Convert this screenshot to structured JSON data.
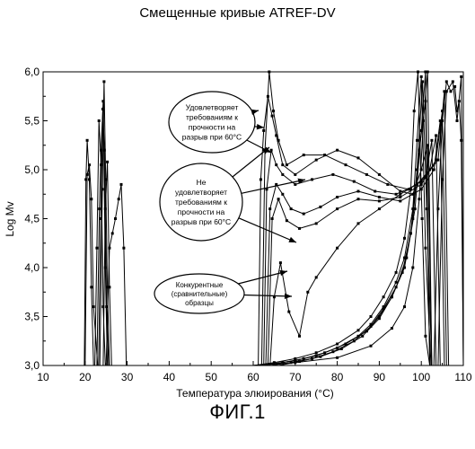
{
  "caption": "ФИГ.1",
  "chart_data": {
    "type": "line",
    "title": "Смещенные кривые ATREF-DV",
    "xlabel": "Температура элюирования (°C)",
    "ylabel": "Log Mv",
    "xlim": [
      10,
      110
    ],
    "ylim": [
      3.0,
      6.0
    ],
    "x_ticks": [
      "10",
      "20",
      "30",
      "40",
      "50",
      "60",
      "70",
      "80",
      "90",
      "100",
      "110"
    ],
    "y_ticks": [
      "3,0",
      "3,5",
      "4,0",
      "4,5",
      "5,0",
      "5,5",
      "6,0"
    ],
    "grid": false,
    "line_color": "#000000",
    "annotations": [
      {
        "text": "Удовлетворяет требованиям к прочности на разрыв при 60°C",
        "lines": [
          "Удовлетворяет",
          "требованиям к",
          "прочности на",
          "разрыв при 60°C"
        ]
      },
      {
        "text": "Не удовлетворяет требованиям к прочности на разрыв при 60°C",
        "lines": [
          "Не",
          "удовлетворяет",
          "требованиям к",
          "прочности на",
          "разрыв при 60°C"
        ]
      },
      {
        "text": "Конкурентные (сравнительные) образцы",
        "lines": [
          "Конкурентные",
          "(сравнительные)",
          "образцы"
        ]
      }
    ],
    "series": [
      {
        "x": [
          10,
          19.8,
          20.2,
          20.5,
          21,
          21.5,
          22,
          29,
          110
        ],
        "y": [
          3.0,
          3.0,
          4.9,
          5.3,
          4.9,
          3.8,
          3.0,
          3.0,
          3.0
        ]
      },
      {
        "x": [
          10,
          20,
          20.5,
          21,
          21.5,
          22,
          23,
          110
        ],
        "y": [
          3.0,
          3.0,
          4.95,
          5.05,
          4.7,
          3.6,
          3.0,
          3.0
        ]
      },
      {
        "x": [
          10,
          22.3,
          22.8,
          23.3,
          23.8,
          24.3,
          24.8,
          110
        ],
        "y": [
          3.0,
          3.0,
          4.2,
          5.5,
          5.05,
          3.6,
          3.0,
          3.0
        ]
      },
      {
        "x": [
          10,
          22.8,
          23.4,
          23.8,
          24.3,
          24.8,
          25.3,
          110
        ],
        "y": [
          3.0,
          3.0,
          4.6,
          5.2,
          5.7,
          4.0,
          3.0,
          3.0
        ]
      },
      {
        "x": [
          10,
          23.2,
          23.7,
          24.2,
          24.6,
          25.1,
          25.6,
          110
        ],
        "y": [
          3.0,
          3.0,
          4.5,
          5.62,
          5.2,
          3.6,
          3.0,
          3.0
        ]
      },
      {
        "x": [
          10,
          23.5,
          24.1,
          24.5,
          24.9,
          25.3,
          25.8,
          110
        ],
        "y": [
          3.0,
          3.0,
          4.8,
          5.9,
          4.9,
          3.8,
          3.0,
          3.0
        ]
      },
      {
        "x": [
          10,
          24.3,
          24.8,
          25.3,
          25.8,
          26.3,
          110
        ],
        "y": [
          3.0,
          3.0,
          4.6,
          5.08,
          3.8,
          3.0,
          3.0
        ]
      },
      {
        "x": [
          10,
          25,
          25.8,
          26.5,
          27.2,
          28,
          28.6,
          29.2,
          29.8,
          110
        ],
        "y": [
          3.0,
          3.0,
          4.2,
          4.35,
          4.5,
          4.7,
          4.85,
          4.2,
          3.0,
          3.0
        ]
      },
      {
        "x": [
          10,
          61.2,
          61.8,
          62.5,
          63.5,
          64.5,
          65.5,
          67,
          70,
          75,
          80,
          85,
          90,
          95,
          98,
          100,
          101.5,
          102.5,
          110
        ],
        "y": [
          3.0,
          3.0,
          4.9,
          5.4,
          5.75,
          5.55,
          5.35,
          5.05,
          4.95,
          5.1,
          5.2,
          5.12,
          4.95,
          4.78,
          4.75,
          5.0,
          5.25,
          3.0,
          3.0
        ]
      },
      {
        "x": [
          10,
          62,
          62.8,
          63.8,
          64.8,
          66,
          68,
          72,
          77,
          82,
          87,
          92,
          97,
          101,
          102.5,
          103.5,
          110
        ],
        "y": [
          3.0,
          3.0,
          5.2,
          6.0,
          5.6,
          5.3,
          5.05,
          5.15,
          5.15,
          5.05,
          4.95,
          4.85,
          4.8,
          4.92,
          5.3,
          3.0,
          3.0
        ]
      },
      {
        "x": [
          10,
          62.5,
          63.2,
          64.3,
          65.5,
          67,
          70,
          74,
          79,
          84,
          89,
          94,
          99,
          102,
          103.5,
          104.5,
          110
        ],
        "y": [
          3.0,
          3.0,
          4.8,
          5.2,
          5.05,
          4.95,
          4.85,
          4.9,
          4.95,
          4.88,
          4.78,
          4.75,
          4.85,
          5.0,
          5.35,
          3.0,
          3.0
        ]
      },
      {
        "x": [
          10,
          63,
          64,
          65.5,
          67,
          69,
          72,
          76,
          80,
          85,
          90,
          95,
          100,
          103,
          104.5,
          105.5,
          110
        ],
        "y": [
          3.0,
          3.0,
          4.6,
          4.85,
          4.75,
          4.6,
          4.55,
          4.62,
          4.72,
          4.78,
          4.72,
          4.68,
          4.8,
          5.0,
          5.5,
          3.0,
          3.0
        ]
      },
      {
        "x": [
          10,
          63.5,
          64.5,
          66,
          68,
          71,
          75,
          80,
          85,
          90,
          95,
          100,
          103.5,
          105,
          106,
          110
        ],
        "y": [
          3.0,
          3.0,
          4.5,
          4.7,
          4.48,
          4.4,
          4.45,
          4.6,
          4.7,
          4.68,
          4.72,
          4.85,
          5.1,
          5.6,
          3.0,
          3.0
        ]
      },
      {
        "x": [
          10,
          64,
          65,
          66.5,
          68.5,
          71,
          73,
          75,
          80,
          85,
          90,
          95,
          100,
          104,
          105.5,
          106.5,
          110
        ],
        "y": [
          3.0,
          3.0,
          3.7,
          4.05,
          3.55,
          3.3,
          3.75,
          3.9,
          4.2,
          4.45,
          4.6,
          4.75,
          4.88,
          5.1,
          5.8,
          3.0,
          3.0
        ]
      },
      {
        "x": [
          10,
          60,
          65,
          70,
          75,
          80,
          85,
          88,
          91,
          94,
          96,
          97.5,
          98.3,
          99.2,
          100.2,
          101,
          102,
          110
        ],
        "y": [
          3.0,
          3.0,
          3.03,
          3.07,
          3.13,
          3.22,
          3.36,
          3.5,
          3.7,
          3.95,
          4.3,
          4.8,
          5.6,
          6.0,
          4.5,
          3.3,
          3.0,
          3.0
        ]
      },
      {
        "x": [
          10,
          60,
          65,
          70,
          75,
          80,
          85,
          88,
          91,
          94,
          96,
          98,
          99,
          100,
          101,
          102.3,
          110
        ],
        "y": [
          3.0,
          3.0,
          3.02,
          3.05,
          3.1,
          3.18,
          3.3,
          3.42,
          3.6,
          3.85,
          4.1,
          4.6,
          5.3,
          5.95,
          4.2,
          3.0,
          3.0
        ]
      },
      {
        "x": [
          10,
          62,
          67,
          72,
          77,
          82,
          87,
          90,
          93,
          95.5,
          97.5,
          99,
          100.3,
          101.3,
          102.5,
          110
        ],
        "y": [
          3.0,
          3.0,
          3.03,
          3.07,
          3.13,
          3.22,
          3.35,
          3.5,
          3.7,
          3.95,
          4.35,
          5.0,
          5.9,
          4.6,
          3.0,
          3.0
        ]
      },
      {
        "x": [
          10,
          64,
          69,
          74,
          79,
          84,
          88,
          91,
          94,
          96.5,
          98.5,
          100,
          101,
          102,
          110
        ],
        "y": [
          3.0,
          3.0,
          3.03,
          3.07,
          3.14,
          3.25,
          3.4,
          3.58,
          3.8,
          4.1,
          4.6,
          5.4,
          6.0,
          3.0,
          3.0
        ]
      },
      {
        "x": [
          10,
          66,
          71,
          76,
          81,
          86,
          90,
          93,
          96,
          98,
          99.5,
          101,
          102,
          110
        ],
        "y": [
          3.0,
          3.0,
          3.04,
          3.09,
          3.17,
          3.3,
          3.48,
          3.7,
          4.0,
          4.5,
          5.2,
          5.7,
          3.0,
          3.0
        ]
      },
      {
        "x": [
          10,
          60,
          70,
          80,
          88,
          93,
          96,
          98,
          99.5,
          100.5,
          101.5,
          102.5,
          110
        ],
        "y": [
          3.0,
          3.0,
          3.03,
          3.08,
          3.2,
          3.38,
          3.6,
          4.0,
          4.7,
          5.5,
          6.0,
          3.0,
          3.0
        ]
      },
      {
        "x": [
          10,
          103,
          104,
          105,
          106,
          107,
          108,
          108.5,
          109,
          109.5,
          110
        ],
        "y": [
          3.0,
          3.0,
          4.6,
          5.5,
          5.9,
          5.8,
          5.85,
          5.6,
          5.7,
          5.3,
          3.0
        ]
      },
      {
        "x": [
          10,
          104,
          105,
          106,
          107.5,
          108.5,
          109.5,
          110
        ],
        "y": [
          3.0,
          3.0,
          4.9,
          5.8,
          5.9,
          5.5,
          5.95,
          3.0
        ]
      }
    ]
  }
}
